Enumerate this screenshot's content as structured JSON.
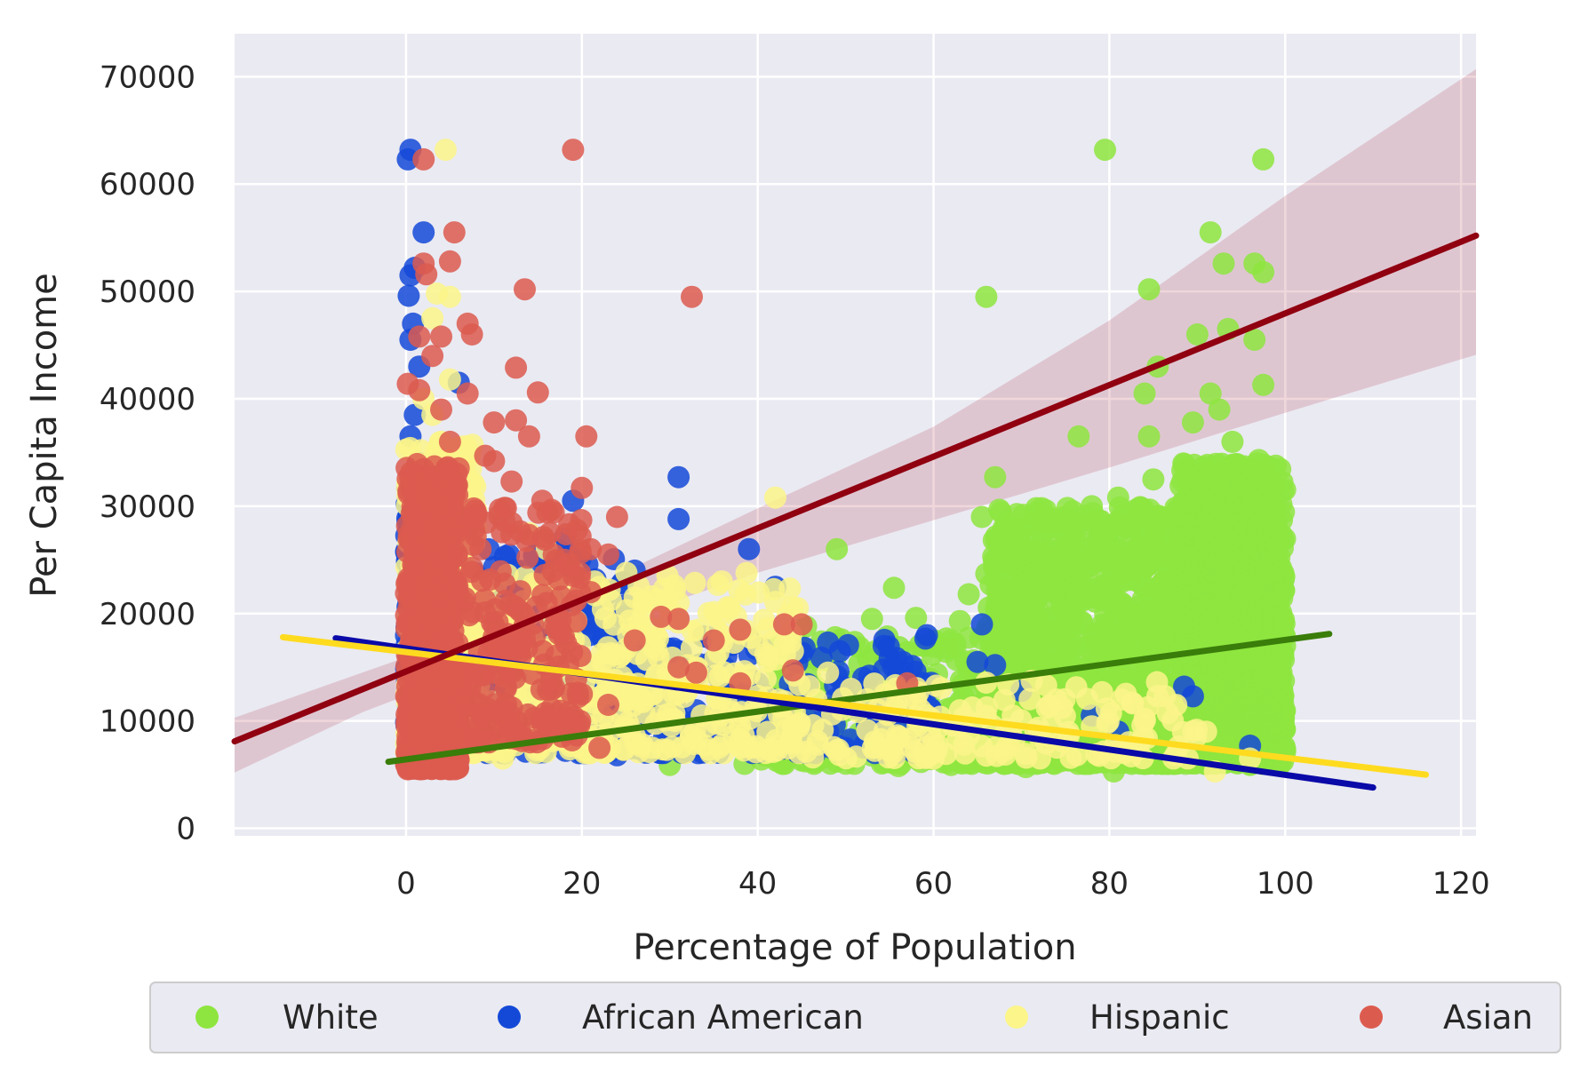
{
  "chart_data": {
    "type": "scatter",
    "xlabel": "Percentage of Population",
    "ylabel": "Per Capita Income",
    "xlim": [
      -19.5,
      121.7
    ],
    "ylim": [
      -700,
      74000
    ],
    "xticks": [
      0,
      20,
      40,
      60,
      80,
      100,
      120
    ],
    "yticks": [
      0,
      10000,
      20000,
      30000,
      40000,
      50000,
      60000,
      70000
    ],
    "grid": true,
    "legend": {
      "placement": "bottom-center, below axes",
      "columns": 4
    },
    "series": [
      {
        "name": "White",
        "color": "#8ee53f",
        "regression": {
          "x": [
            -2,
            105
          ],
          "y": [
            6200,
            18100
          ],
          "color": "#3a7d0a"
        },
        "points": [
          [
            79.5,
            63200
          ],
          [
            97.5,
            62300
          ],
          [
            66,
            49500
          ],
          [
            91.5,
            55500
          ],
          [
            93,
            52600
          ],
          [
            96.5,
            52600
          ],
          [
            97.5,
            51800
          ],
          [
            84.5,
            50200
          ],
          [
            90,
            46000
          ],
          [
            93.5,
            46500
          ],
          [
            96.5,
            45500
          ],
          [
            85.5,
            43000
          ],
          [
            84,
            40500
          ],
          [
            89.5,
            37800
          ],
          [
            91.5,
            40500
          ],
          [
            92.5,
            39000
          ],
          [
            97.5,
            41300
          ],
          [
            76.5,
            36500
          ],
          [
            84.5,
            36500
          ],
          [
            94,
            36000
          ],
          [
            97,
            34300
          ],
          [
            67,
            32700
          ],
          [
            85,
            32500
          ],
          [
            93,
            33000
          ],
          [
            78,
            30000
          ],
          [
            81,
            30800
          ],
          [
            88.5,
            29000
          ],
          [
            65.5,
            29000
          ],
          [
            49,
            26000
          ],
          [
            70,
            25500
          ],
          [
            72,
            25300
          ],
          [
            79,
            27800
          ],
          [
            66,
            23700
          ],
          [
            75,
            25000
          ],
          [
            55.5,
            22400
          ],
          [
            64,
            21800
          ],
          [
            73,
            22500
          ],
          [
            83,
            24300
          ],
          [
            87,
            22700
          ],
          [
            58,
            19600
          ],
          [
            63,
            19300
          ],
          [
            68,
            20500
          ],
          [
            53,
            19500
          ],
          [
            45.5,
            18800
          ],
          [
            49.5,
            17600
          ],
          [
            57,
            16400
          ],
          [
            60,
            16900
          ],
          [
            62,
            17500
          ],
          [
            70,
            17800
          ],
          [
            56,
            5800
          ],
          [
            62,
            5900
          ],
          [
            70.5,
            5700
          ],
          [
            76,
            6300
          ],
          [
            79,
            6700
          ],
          [
            80.5,
            5300
          ],
          [
            84,
            6100
          ],
          [
            88,
            6700
          ],
          [
            92,
            6900
          ],
          [
            96,
            5900
          ],
          [
            38.5,
            6000
          ],
          [
            30,
            5900
          ],
          [
            42,
            7000
          ],
          [
            48,
            7500
          ],
          [
            53,
            8200
          ],
          [
            60,
            8800
          ],
          [
            66,
            9000
          ],
          [
            72,
            9600
          ],
          [
            76,
            9800
          ],
          [
            83,
            10200
          ],
          [
            88,
            10600
          ],
          [
            93,
            11000
          ],
          [
            97,
            10800
          ]
        ],
        "dense_clusters": [
          {
            "x": [
              66,
              100
            ],
            "y": [
              6000,
              30000
            ],
            "count": 1700
          },
          {
            "x": [
              88,
              100
            ],
            "y": [
              9000,
              34000
            ],
            "count": 1100
          },
          {
            "x": [
              40,
              66
            ],
            "y": [
              6000,
              18000
            ],
            "count": 260
          }
        ]
      },
      {
        "name": "African American",
        "color": "#1449d8",
        "regression": {
          "x": [
            -8,
            110
          ],
          "y": [
            17700,
            3800
          ],
          "color": "#0a0aa8"
        },
        "points": [
          [
            0.5,
            63200
          ],
          [
            0.2,
            62300
          ],
          [
            2,
            55500
          ],
          [
            1,
            52200
          ],
          [
            0.5,
            51500
          ],
          [
            0.3,
            49600
          ],
          [
            0.8,
            47000
          ],
          [
            0.5,
            45500
          ],
          [
            1.5,
            43000
          ],
          [
            6,
            41500
          ],
          [
            1,
            38500
          ],
          [
            0.5,
            36500
          ],
          [
            1.5,
            34000
          ],
          [
            31,
            32700
          ],
          [
            31,
            28800
          ],
          [
            19,
            30500
          ],
          [
            18,
            27000
          ],
          [
            26,
            24000
          ],
          [
            39,
            26000
          ],
          [
            42,
            22500
          ],
          [
            65.5,
            19000
          ],
          [
            65,
            15500
          ],
          [
            67,
            15200
          ],
          [
            52,
            14000
          ],
          [
            48,
            17300
          ],
          [
            55,
            15800
          ],
          [
            56.5,
            15500
          ],
          [
            35,
            17500
          ],
          [
            31,
            16500
          ],
          [
            40,
            13500
          ],
          [
            44,
            12000
          ],
          [
            48,
            9000
          ],
          [
            50,
            7500
          ],
          [
            56,
            7300
          ],
          [
            24,
            6800
          ],
          [
            26,
            7500
          ],
          [
            88.5,
            13200
          ],
          [
            89.5,
            12300
          ],
          [
            96,
            7700
          ],
          [
            70,
            12800
          ],
          [
            78,
            10500
          ],
          [
            81,
            9000
          ],
          [
            14,
            8500
          ],
          [
            11,
            7000
          ],
          [
            20,
            9300
          ],
          [
            28,
            14500
          ],
          [
            33,
            11000
          ],
          [
            36,
            9000
          ]
        ],
        "dense_clusters": [
          {
            "x": [
              0,
              6
            ],
            "y": [
              6000,
              33000
            ],
            "count": 800
          },
          {
            "x": [
              6,
              25
            ],
            "y": [
              7000,
              26000
            ],
            "count": 220
          },
          {
            "x": [
              25,
              60
            ],
            "y": [
              7000,
              18000
            ],
            "count": 200
          }
        ]
      },
      {
        "name": "Hispanic",
        "color": "#fbf58a",
        "regression": {
          "x": [
            -14,
            116
          ],
          "y": [
            17800,
            5000
          ],
          "color": "#fedb1f"
        },
        "points": [
          [
            4.5,
            63200
          ],
          [
            3.5,
            49800
          ],
          [
            5,
            49500
          ],
          [
            3,
            47500
          ],
          [
            5,
            41800
          ],
          [
            2,
            40000
          ],
          [
            3,
            38500
          ],
          [
            4,
            36000
          ],
          [
            42,
            30800
          ],
          [
            5.5,
            33000
          ],
          [
            6.5,
            31000
          ],
          [
            14,
            27500
          ],
          [
            16,
            26000
          ],
          [
            19,
            24000
          ],
          [
            22,
            22500
          ],
          [
            26,
            21500
          ],
          [
            30,
            19500
          ],
          [
            36,
            18000
          ],
          [
            44,
            16500
          ],
          [
            48,
            14500
          ],
          [
            58,
            12000
          ],
          [
            63,
            11000
          ],
          [
            69,
            10500
          ],
          [
            74,
            12000
          ],
          [
            78,
            9500
          ],
          [
            84,
            10200
          ],
          [
            91,
            9000
          ],
          [
            92,
            5300
          ],
          [
            96,
            6500
          ],
          [
            11,
            6500
          ],
          [
            9,
            8000
          ],
          [
            28,
            7500
          ],
          [
            38,
            8300
          ],
          [
            54,
            8300
          ],
          [
            60,
            8000
          ],
          [
            67,
            7500
          ]
        ],
        "dense_clusters": [
          {
            "x": [
              0,
              8
            ],
            "y": [
              7000,
              36000
            ],
            "count": 500
          },
          {
            "x": [
              8,
              45
            ],
            "y": [
              7000,
              24000
            ],
            "count": 420
          },
          {
            "x": [
              45,
              90
            ],
            "y": [
              6500,
              14000
            ],
            "count": 160
          }
        ]
      },
      {
        "name": "Asian",
        "color": "#dc5b4f",
        "regression": {
          "x": [
            -19.5,
            121.7
          ],
          "y": [
            8100,
            55200
          ],
          "color": "#900010",
          "ci": {
            "x": [
              -19.5,
              -5,
              10,
              20,
              40,
              60,
              80,
              100,
              121.7
            ],
            "lower": [
              5200,
              10800,
              15500,
              18200,
              23800,
              28700,
              33600,
              38700,
              44100
            ],
            "upper": [
              10300,
              14500,
              18800,
              22000,
              29800,
              37400,
              47300,
              58900,
              70700
            ]
          }
        },
        "points": [
          [
            19,
            63200
          ],
          [
            2,
            62300
          ],
          [
            5.5,
            55500
          ],
          [
            5,
            52800
          ],
          [
            2,
            52600
          ],
          [
            2.3,
            51600
          ],
          [
            13.5,
            50200
          ],
          [
            32.5,
            49500
          ],
          [
            7,
            47000
          ],
          [
            1.5,
            45800
          ],
          [
            4,
            45800
          ],
          [
            3,
            44000
          ],
          [
            7.5,
            46000
          ],
          [
            12.5,
            42900
          ],
          [
            0.2,
            41400
          ],
          [
            1.5,
            40800
          ],
          [
            7,
            40500
          ],
          [
            15,
            40600
          ],
          [
            4,
            39000
          ],
          [
            10,
            37800
          ],
          [
            12.5,
            38000
          ],
          [
            14,
            36500
          ],
          [
            20.5,
            36500
          ],
          [
            5,
            36000
          ],
          [
            9,
            34700
          ],
          [
            10,
            34200
          ],
          [
            12,
            32300
          ],
          [
            15.5,
            30500
          ],
          [
            20,
            31700
          ],
          [
            24,
            29000
          ],
          [
            21,
            26000
          ],
          [
            23,
            25500
          ],
          [
            18,
            25000
          ],
          [
            21,
            22000
          ],
          [
            16,
            21000
          ],
          [
            26,
            17500
          ],
          [
            29,
            19700
          ],
          [
            31,
            19500
          ],
          [
            35,
            17500
          ],
          [
            38,
            18500
          ],
          [
            43,
            19000
          ],
          [
            45,
            19000
          ],
          [
            31,
            15000
          ],
          [
            33,
            14500
          ],
          [
            38,
            13500
          ],
          [
            44,
            14700
          ],
          [
            57,
            13500
          ],
          [
            11,
            9500
          ],
          [
            17,
            9000
          ],
          [
            22,
            7500
          ],
          [
            23,
            11500
          ],
          [
            20,
            12500
          ],
          [
            0.2,
            5500
          ]
        ],
        "dense_clusters": [
          {
            "x": [
              0,
              6
            ],
            "y": [
              5500,
              34000
            ],
            "count": 700
          },
          {
            "x": [
              6,
              20
            ],
            "y": [
              8000,
              30000
            ],
            "count": 220
          }
        ]
      }
    ]
  }
}
